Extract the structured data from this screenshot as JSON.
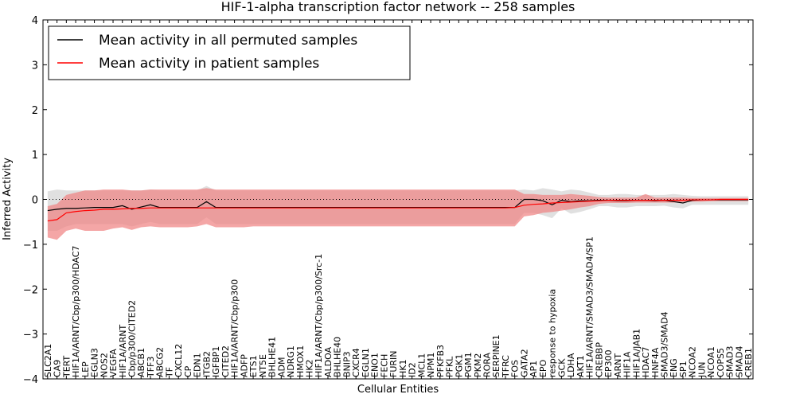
{
  "chart_data": {
    "type": "line",
    "title": "HIF-1-alpha transcription factor network -- 258 samples",
    "xlabel": "Cellular Entities",
    "ylabel": "Inferred Activity",
    "ylim": [
      -4,
      4
    ],
    "yticks": [
      -4,
      -3,
      -2,
      -1,
      0,
      1,
      2,
      3,
      4
    ],
    "legend_position": "top-left",
    "colors": {
      "permuted": "#000000",
      "patient": "#ff0000",
      "patient_band": "#f08080",
      "permuted_band": "#d3d3d3",
      "zero_line": "#000000"
    },
    "categories": [
      "SLC2A1",
      "CA9",
      "TERT",
      "HIF1A/ARNT/Cbp/p300/HDAC7",
      "LEP",
      "EGLN3",
      "NOS2",
      "VEGFA",
      "HIF1A/ARNT",
      "Cbp/p300/CITED2",
      "ABCB1",
      "TFF3",
      "ABCG2",
      "TF",
      "CXCL12",
      "CP",
      "EDN1",
      "ITGB2",
      "IGFBP1",
      "CITED2",
      "HIF1A/ARNT/Cbp/p300",
      "ADFP",
      "ETS1",
      "NT5E",
      "BHLHE41",
      "ADM",
      "NDRG1",
      "HMOX1",
      "HK2",
      "HIF1A/ARNT/Cbp/p300/Src-1",
      "ALDOA",
      "BHLHE40",
      "BNIP3",
      "CXCR4",
      "EGLN1",
      "ENO1",
      "FECH",
      "FURIN",
      "HK1",
      "ID2",
      "MCL1",
      "NPM1",
      "PFKFB3",
      "PFKL",
      "PGK1",
      "PGM1",
      "PKM2",
      "RORA",
      "SERPINE1",
      "TFRC",
      "FOS",
      "GATA2",
      "AP1",
      "EPO",
      "response to hypoxia",
      "GCK",
      "LDHA",
      "AKT1",
      "HIF1A/ARNT/SMAD3/SMAD4/SP1",
      "CREBBP",
      "EP300",
      "ARNT",
      "HIF1A",
      "HIF1A/JAB1",
      "HDAC7",
      "HNF4A",
      "SMAD3/SMAD4",
      "ENG",
      "SP1",
      "NCOA2",
      "JUN",
      "NCOA1",
      "COPS5",
      "SMAD3",
      "SMAD4",
      "CREB1"
    ],
    "series": [
      {
        "name": "Mean activity in all permuted samples",
        "values": [
          -0.25,
          -0.22,
          -0.2,
          -0.2,
          -0.19,
          -0.18,
          -0.18,
          -0.18,
          -0.14,
          -0.22,
          -0.17,
          -0.12,
          -0.18,
          -0.18,
          -0.18,
          -0.18,
          -0.18,
          -0.05,
          -0.18,
          -0.18,
          -0.18,
          -0.18,
          -0.18,
          -0.18,
          -0.18,
          -0.18,
          -0.18,
          -0.18,
          -0.18,
          -0.18,
          -0.18,
          -0.18,
          -0.18,
          -0.18,
          -0.18,
          -0.18,
          -0.18,
          -0.18,
          -0.18,
          -0.18,
          -0.18,
          -0.18,
          -0.18,
          -0.18,
          -0.18,
          -0.18,
          -0.18,
          -0.18,
          -0.18,
          -0.18,
          -0.18,
          0.0,
          0.0,
          -0.03,
          -0.12,
          -0.02,
          -0.05,
          -0.03,
          -0.03,
          -0.02,
          -0.02,
          -0.03,
          -0.03,
          -0.02,
          -0.02,
          -0.03,
          -0.02,
          -0.05,
          -0.08,
          -0.02,
          -0.01,
          -0.01,
          -0.01,
          -0.01,
          -0.01,
          -0.01
        ],
        "band_lower": [
          -0.7,
          -0.7,
          -0.6,
          -0.55,
          -0.55,
          -0.55,
          -0.55,
          -0.55,
          -0.55,
          -0.6,
          -0.55,
          -0.5,
          -0.55,
          -0.55,
          -0.55,
          -0.55,
          -0.55,
          -0.4,
          -0.55,
          -0.55,
          -0.55,
          -0.55,
          -0.55,
          -0.55,
          -0.55,
          -0.55,
          -0.55,
          -0.55,
          -0.55,
          -0.55,
          -0.55,
          -0.55,
          -0.55,
          -0.55,
          -0.55,
          -0.55,
          -0.55,
          -0.55,
          -0.55,
          -0.55,
          -0.55,
          -0.55,
          -0.55,
          -0.55,
          -0.55,
          -0.55,
          -0.55,
          -0.55,
          -0.55,
          -0.55,
          -0.55,
          -0.3,
          -0.3,
          -0.35,
          -0.42,
          -0.2,
          -0.32,
          -0.28,
          -0.22,
          -0.15,
          -0.15,
          -0.18,
          -0.18,
          -0.15,
          -0.15,
          -0.15,
          -0.14,
          -0.18,
          -0.2,
          -0.12,
          -0.12,
          -0.12,
          -0.12,
          -0.12,
          -0.12,
          -0.12
        ],
        "band_upper": [
          0.18,
          0.22,
          0.2,
          0.2,
          0.2,
          0.2,
          0.2,
          0.2,
          0.2,
          0.2,
          0.2,
          0.22,
          0.2,
          0.2,
          0.2,
          0.2,
          0.2,
          0.3,
          0.2,
          0.2,
          0.2,
          0.2,
          0.2,
          0.2,
          0.2,
          0.2,
          0.2,
          0.2,
          0.2,
          0.2,
          0.2,
          0.2,
          0.2,
          0.2,
          0.2,
          0.2,
          0.2,
          0.2,
          0.2,
          0.2,
          0.2,
          0.2,
          0.2,
          0.2,
          0.2,
          0.2,
          0.2,
          0.2,
          0.2,
          0.2,
          0.2,
          0.22,
          0.2,
          0.25,
          0.22,
          0.18,
          0.22,
          0.2,
          0.15,
          0.1,
          0.1,
          0.12,
          0.12,
          0.1,
          0.1,
          0.1,
          0.1,
          0.12,
          0.1,
          0.08,
          0.07,
          0.07,
          0.07,
          0.07,
          0.07,
          0.07
        ]
      },
      {
        "name": "Mean activity in patient samples",
        "values": [
          -0.48,
          -0.45,
          -0.3,
          -0.27,
          -0.25,
          -0.24,
          -0.22,
          -0.22,
          -0.21,
          -0.2,
          -0.2,
          -0.19,
          -0.19,
          -0.19,
          -0.19,
          -0.19,
          -0.19,
          -0.19,
          -0.19,
          -0.19,
          -0.19,
          -0.19,
          -0.19,
          -0.19,
          -0.19,
          -0.19,
          -0.19,
          -0.19,
          -0.19,
          -0.19,
          -0.19,
          -0.19,
          -0.19,
          -0.19,
          -0.19,
          -0.19,
          -0.19,
          -0.19,
          -0.19,
          -0.19,
          -0.19,
          -0.19,
          -0.19,
          -0.19,
          -0.19,
          -0.19,
          -0.19,
          -0.19,
          -0.19,
          -0.19,
          -0.18,
          -0.13,
          -0.11,
          -0.1,
          -0.08,
          -0.07,
          -0.06,
          -0.05,
          -0.04,
          -0.03,
          -0.02,
          -0.02,
          -0.02,
          -0.02,
          -0.02,
          -0.02,
          -0.02,
          -0.02,
          -0.02,
          -0.01,
          -0.01,
          -0.01,
          0.0,
          0.0,
          0.0,
          0.0
        ],
        "band_lower": [
          -0.85,
          -0.9,
          -0.7,
          -0.65,
          -0.7,
          -0.7,
          -0.7,
          -0.65,
          -0.62,
          -0.68,
          -0.62,
          -0.6,
          -0.62,
          -0.62,
          -0.62,
          -0.62,
          -0.6,
          -0.55,
          -0.62,
          -0.62,
          -0.62,
          -0.62,
          -0.6,
          -0.6,
          -0.6,
          -0.6,
          -0.6,
          -0.6,
          -0.6,
          -0.6,
          -0.6,
          -0.6,
          -0.6,
          -0.6,
          -0.6,
          -0.6,
          -0.6,
          -0.6,
          -0.6,
          -0.6,
          -0.6,
          -0.6,
          -0.6,
          -0.6,
          -0.6,
          -0.6,
          -0.6,
          -0.6,
          -0.6,
          -0.6,
          -0.6,
          -0.38,
          -0.35,
          -0.3,
          -0.28,
          -0.25,
          -0.22,
          -0.18,
          -0.15,
          -0.1,
          -0.08,
          -0.08,
          -0.08,
          -0.07,
          -0.07,
          -0.07,
          -0.07,
          -0.07,
          -0.06,
          -0.05,
          -0.05,
          -0.04,
          -0.04,
          -0.04,
          -0.04,
          -0.04
        ],
        "band_upper": [
          -0.15,
          -0.1,
          0.1,
          0.15,
          0.2,
          0.2,
          0.22,
          0.22,
          0.22,
          0.2,
          0.2,
          0.22,
          0.22,
          0.22,
          0.22,
          0.22,
          0.22,
          0.25,
          0.22,
          0.22,
          0.22,
          0.22,
          0.22,
          0.22,
          0.22,
          0.22,
          0.22,
          0.22,
          0.22,
          0.22,
          0.22,
          0.22,
          0.22,
          0.22,
          0.22,
          0.22,
          0.22,
          0.22,
          0.22,
          0.22,
          0.22,
          0.22,
          0.22,
          0.22,
          0.22,
          0.22,
          0.22,
          0.22,
          0.22,
          0.22,
          0.22,
          0.12,
          0.12,
          0.1,
          0.1,
          0.1,
          0.12,
          0.1,
          0.08,
          0.05,
          0.04,
          0.04,
          0.04,
          0.04,
          0.12,
          0.04,
          0.04,
          0.04,
          0.04,
          0.03,
          0.03,
          0.03,
          0.03,
          0.03,
          0.03,
          0.03
        ]
      }
    ]
  }
}
